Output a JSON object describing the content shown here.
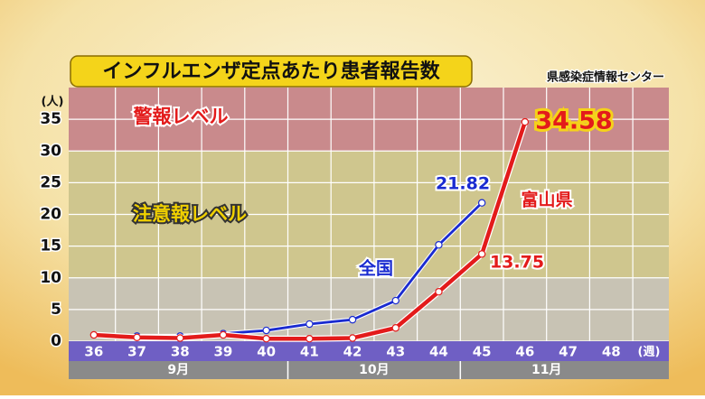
{
  "chart_data": {
    "type": "line",
    "title": "インフルエンザ定点あたり患者報告数",
    "source": "県感染症情報センター",
    "y_unit": "(人)",
    "x_unit": "(週)",
    "categories": [
      "36",
      "37",
      "38",
      "39",
      "40",
      "41",
      "42",
      "43",
      "44",
      "45",
      "46",
      "47",
      "48"
    ],
    "x_groups": [
      {
        "label": "9月",
        "count": 5
      },
      {
        "label": "10月",
        "count": 4
      },
      {
        "label": "11月",
        "count": 4
      }
    ],
    "series": [
      {
        "name": "全国",
        "color": "#1a2bd0",
        "values": [
          null,
          0.8,
          0.8,
          1.2,
          1.7,
          2.7,
          3.4,
          6.4,
          15.2,
          21.82,
          null,
          null,
          null
        ]
      },
      {
        "name": "富山県",
        "color": "#e31b1b",
        "values": [
          1.0,
          0.6,
          0.5,
          1.0,
          0.4,
          0.4,
          0.5,
          2.1,
          7.8,
          13.75,
          34.58,
          null,
          null
        ]
      }
    ],
    "bands": [
      {
        "label": "警報レベル",
        "from": 30,
        "to": 40,
        "color": "#c98a8c"
      },
      {
        "label": "注意報レベル",
        "from": 10,
        "to": 30,
        "color": "#cfc68e"
      }
    ],
    "ylim": [
      0,
      40
    ],
    "yticks": [
      0,
      5,
      10,
      15,
      20,
      25,
      30,
      35
    ],
    "grid": true
  }
}
